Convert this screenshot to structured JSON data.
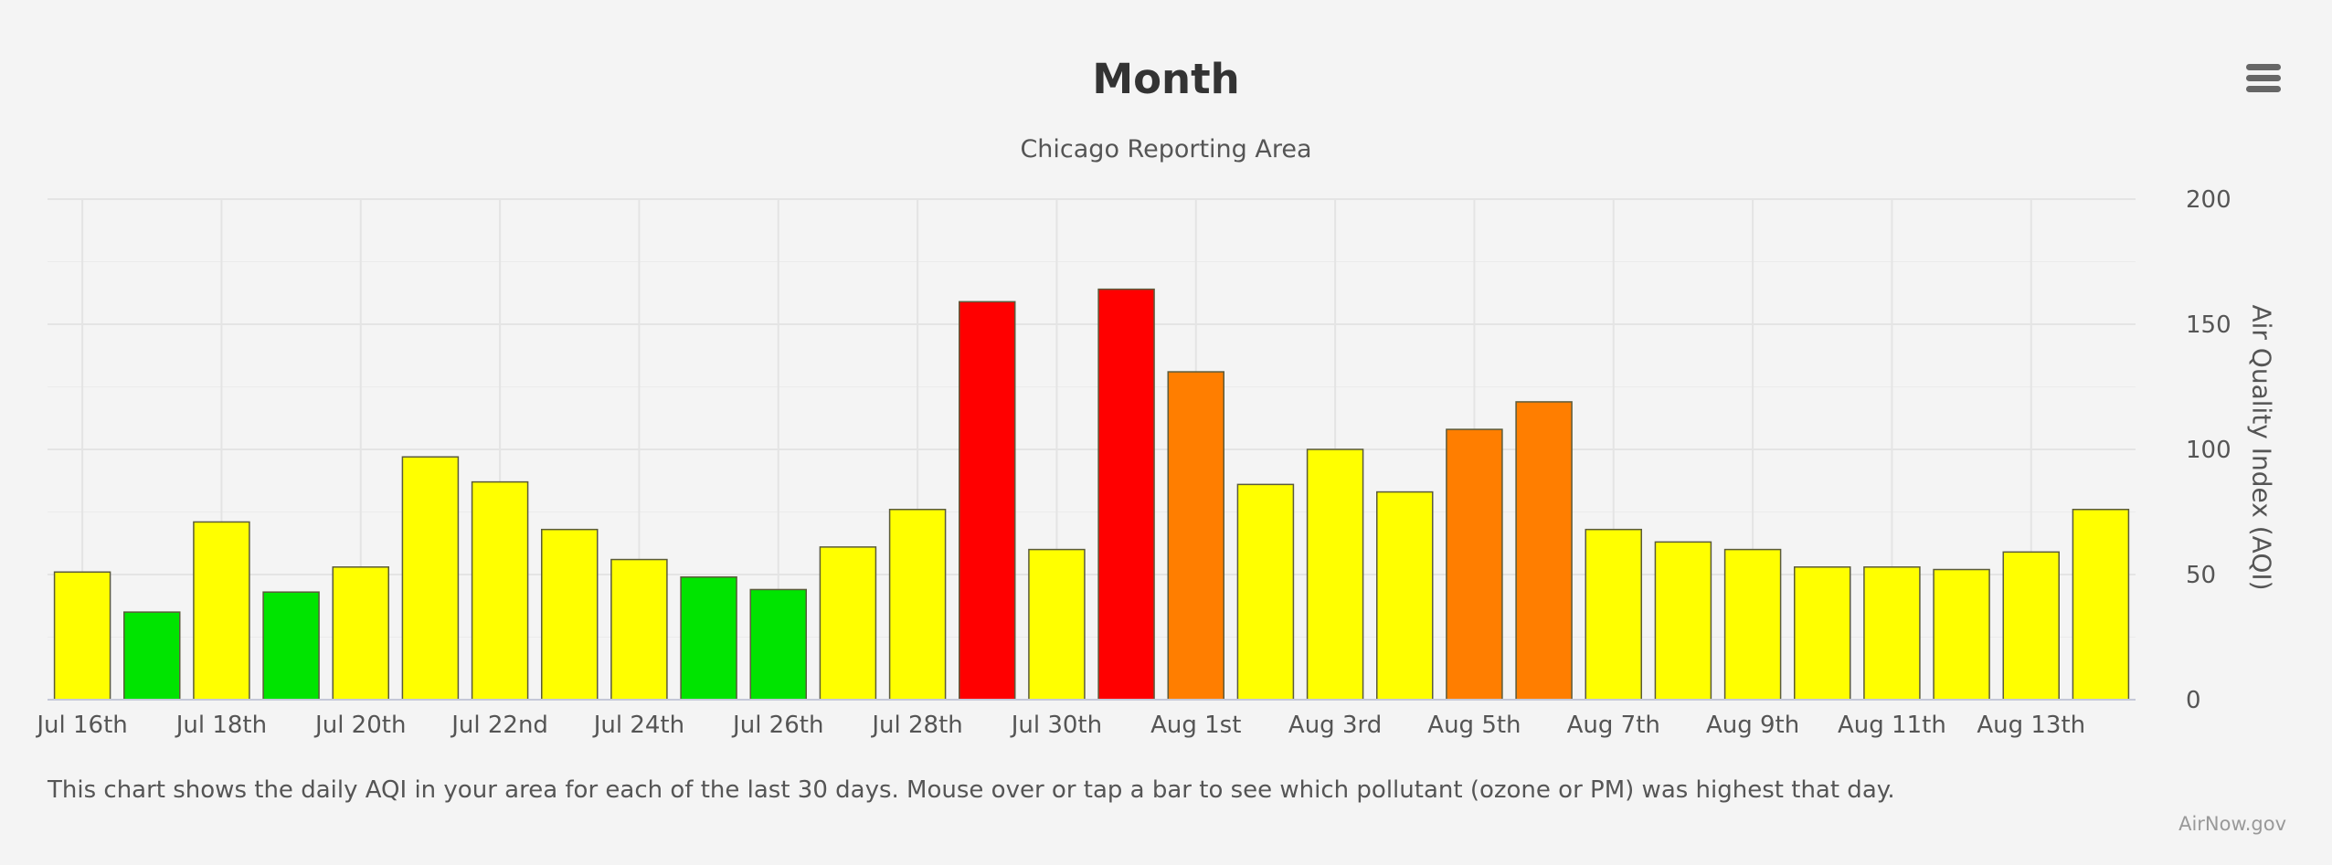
{
  "chart_data": {
    "type": "bar",
    "title": "Month",
    "subtitle": "Chicago Reporting Area",
    "xlabel": "",
    "ylabel": "Air Quality Index (AQI)",
    "ylim": [
      0,
      200
    ],
    "yticks": [
      0,
      50,
      100,
      150,
      200
    ],
    "grid": true,
    "categories": [
      "Jul 16th",
      "Jul 17th",
      "Jul 18th",
      "Jul 19th",
      "Jul 20th",
      "Jul 21st",
      "Jul 22nd",
      "Jul 23rd",
      "Jul 24th",
      "Jul 25th",
      "Jul 26th",
      "Jul 27th",
      "Jul 28th",
      "Jul 29th",
      "Jul 30th",
      "Jul 31st",
      "Aug 1st",
      "Aug 2nd",
      "Aug 3rd",
      "Aug 4th",
      "Aug 5th",
      "Aug 6th",
      "Aug 7th",
      "Aug 8th",
      "Aug 9th",
      "Aug 10th",
      "Aug 11th",
      "Aug 12th",
      "Aug 13th",
      "Aug 14th"
    ],
    "tick_labels": [
      "Jul 16th",
      "",
      "Jul 18th",
      "",
      "Jul 20th",
      "",
      "Jul 22nd",
      "",
      "Jul 24th",
      "",
      "Jul 26th",
      "",
      "Jul 28th",
      "",
      "Jul 30th",
      "",
      "Aug 1st",
      "",
      "Aug 3rd",
      "",
      "Aug 5th",
      "",
      "Aug 7th",
      "",
      "Aug 9th",
      "",
      "Aug 11th",
      "",
      "Aug 13th",
      ""
    ],
    "values": [
      51,
      35,
      71,
      43,
      53,
      97,
      87,
      68,
      56,
      49,
      44,
      61,
      76,
      159,
      60,
      164,
      131,
      86,
      100,
      83,
      108,
      119,
      68,
      63,
      60,
      53,
      53,
      52,
      59,
      76
    ],
    "bar_colors": [
      "#ffff00",
      "#00e400",
      "#ffff00",
      "#00e400",
      "#ffff00",
      "#ffff00",
      "#ffff00",
      "#ffff00",
      "#ffff00",
      "#00e400",
      "#00e400",
      "#ffff00",
      "#ffff00",
      "#ff0000",
      "#ffff00",
      "#ff0000",
      "#ff7e00",
      "#ffff00",
      "#ffff00",
      "#ffff00",
      "#ff7e00",
      "#ff7e00",
      "#ffff00",
      "#ffff00",
      "#ffff00",
      "#ffff00",
      "#ffff00",
      "#ffff00",
      "#ffff00",
      "#ffff00"
    ]
  },
  "caption": "This chart shows the daily AQI in your area for each of the last 30 days. Mouse over or tap a bar to see which pollutant (ozone or PM) was highest that day.",
  "credit": "AirNow.gov",
  "menu_icon": "hamburger-menu-icon",
  "colors": {
    "background": "#f4f4f4",
    "grid": "#e4e4e4",
    "good": "#00e400",
    "moderate": "#ffff00",
    "unhealthy_sensitive": "#ff7e00",
    "unhealthy": "#ff0000"
  }
}
